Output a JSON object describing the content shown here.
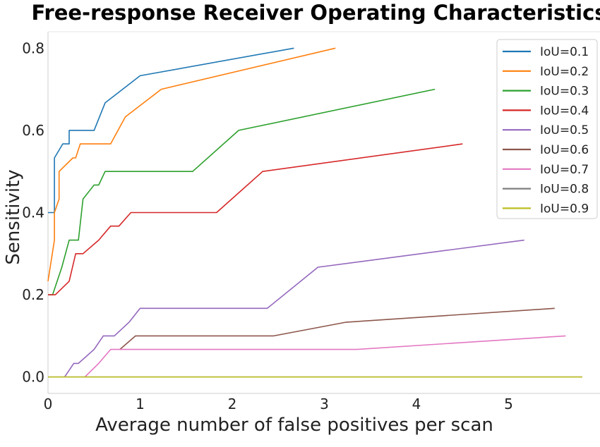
{
  "chart_data": {
    "type": "line",
    "title": "Free-response Receiver Operating Characteristics",
    "xlabel": "Average number of false positives per scan",
    "ylabel": "Sensitivity",
    "xlim": [
      0,
      5.85
    ],
    "ylim": [
      -0.04,
      0.84
    ],
    "xticks": [
      0,
      1,
      2,
      3,
      4,
      5
    ],
    "yticks": [
      0.0,
      0.2,
      0.4,
      0.6,
      0.8
    ],
    "xtick_labels": [
      "0",
      "1",
      "2",
      "3",
      "4",
      "5"
    ],
    "ytick_labels": [
      "0.0",
      "0.2",
      "0.4",
      "0.6",
      "0.8"
    ],
    "grid": false,
    "legend_position": "top-right",
    "series": [
      {
        "name": "IoU=0.1",
        "color": "#1f77b4",
        "x": [
          0,
          0.07,
          0.07,
          0.16,
          0.23,
          0.23,
          0.5,
          0.62,
          1.0,
          2.67
        ],
        "y": [
          0.4,
          0.4,
          0.533,
          0.567,
          0.567,
          0.6,
          0.6,
          0.667,
          0.733,
          0.8
        ]
      },
      {
        "name": "IoU=0.2",
        "color": "#ff7f0e",
        "x": [
          0,
          0.07,
          0.07,
          0.12,
          0.12,
          0.27,
          0.3,
          0.35,
          0.68,
          0.84,
          1.23,
          3.12
        ],
        "y": [
          0.233,
          0.333,
          0.4,
          0.433,
          0.5,
          0.533,
          0.533,
          0.567,
          0.567,
          0.633,
          0.7,
          0.8
        ]
      },
      {
        "name": "IoU=0.3",
        "color": "#2ca02c",
        "x": [
          0,
          0.05,
          0.15,
          0.23,
          0.33,
          0.38,
          0.5,
          0.55,
          0.62,
          1.57,
          2.07,
          4.2
        ],
        "y": [
          0.2,
          0.2,
          0.267,
          0.333,
          0.333,
          0.433,
          0.467,
          0.467,
          0.5,
          0.5,
          0.6,
          0.7
        ]
      },
      {
        "name": "IoU=0.4",
        "color": "#d62728",
        "x": [
          0,
          0.08,
          0.23,
          0.3,
          0.38,
          0.55,
          0.68,
          0.77,
          0.9,
          1.83,
          2.33,
          4.5
        ],
        "y": [
          0.2,
          0.2,
          0.233,
          0.3,
          0.3,
          0.333,
          0.367,
          0.367,
          0.4,
          0.4,
          0.5,
          0.567
        ]
      },
      {
        "name": "IoU=0.5",
        "color": "#9467bd",
        "x": [
          0.18,
          0.28,
          0.33,
          0.5,
          0.6,
          0.72,
          0.88,
          1.0,
          2.38,
          2.93,
          5.17
        ],
        "y": [
          0.0,
          0.033,
          0.033,
          0.067,
          0.1,
          0.1,
          0.133,
          0.167,
          0.167,
          0.267,
          0.333
        ]
      },
      {
        "name": "IoU=0.6",
        "color": "#8c564b",
        "x": [
          0.78,
          0.95,
          2.45,
          3.23,
          5.5
        ],
        "y": [
          0.067,
          0.1,
          0.1,
          0.133,
          0.167
        ]
      },
      {
        "name": "IoU=0.7",
        "color": "#e377c2",
        "x": [
          0.4,
          0.55,
          0.68,
          3.35,
          5.62
        ],
        "y": [
          0.0,
          0.033,
          0.067,
          0.067,
          0.1
        ]
      },
      {
        "name": "IoU=0.8",
        "color": "#7f7f7f",
        "x": [
          0,
          5.8
        ],
        "y": [
          0.0,
          0.0
        ]
      },
      {
        "name": "IoU=0.9",
        "color": "#bcbd22",
        "x": [
          0,
          5.8
        ],
        "y": [
          0.0,
          0.0
        ]
      }
    ]
  }
}
